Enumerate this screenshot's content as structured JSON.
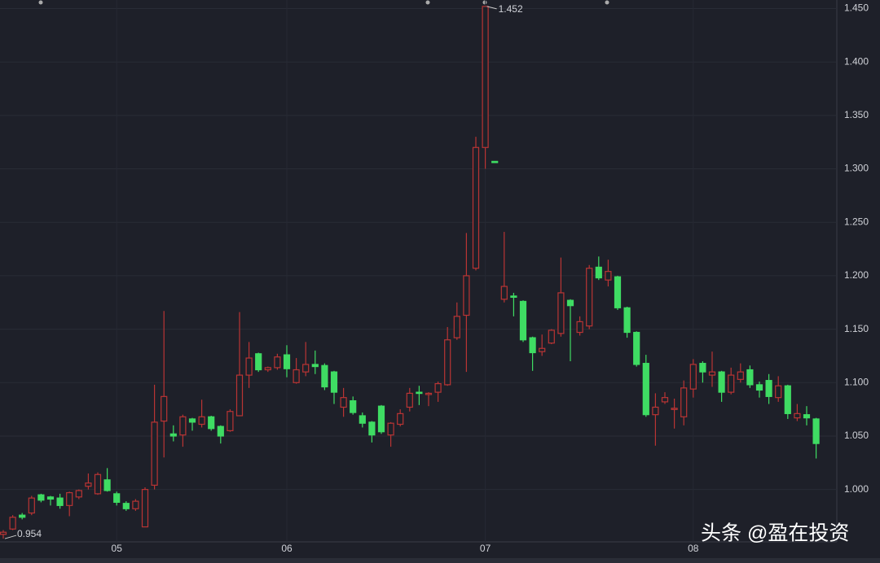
{
  "chart_data": {
    "type": "candlestick",
    "categories": [
      null,
      null,
      null,
      null,
      null,
      null,
      null,
      null,
      null,
      null,
      null,
      null,
      "05",
      null,
      null,
      null,
      null,
      null,
      null,
      null,
      null,
      null,
      null,
      null,
      null,
      null,
      null,
      null,
      null,
      null,
      "06",
      null,
      null,
      null,
      null,
      null,
      null,
      null,
      null,
      null,
      null,
      null,
      null,
      null,
      null,
      null,
      null,
      null,
      null,
      null,
      null,
      "07",
      null,
      null,
      null,
      null,
      null,
      null,
      null,
      null,
      null,
      null,
      null,
      null,
      null,
      null,
      null,
      null,
      null,
      null,
      null,
      null,
      null,
      "08",
      null,
      null,
      null,
      null,
      null,
      null,
      null,
      null,
      null,
      null,
      null,
      null,
      null
    ],
    "open": [
      0.958,
      0.963,
      0.976,
      0.978,
      0.995,
      0.993,
      0.992,
      0.985,
      0.993,
      1.003,
      0.996,
      1.009,
      0.996,
      0.987,
      0.982,
      0.965,
      1.004,
      1.064,
      1.052,
      1.051,
      1.066,
      1.061,
      1.068,
      1.059,
      1.055,
      1.069,
      1.107,
      1.127,
      1.112,
      1.114,
      1.126,
      1.1,
      1.11,
      1.117,
      1.116,
      1.11,
      1.077,
      1.083,
      1.069,
      1.063,
      1.078,
      1.051,
      1.061,
      1.077,
      1.091,
      1.089,
      1.091,
      1.098,
      1.142,
      1.163,
      1.207,
      1.32,
      1.307,
      1.178,
      1.181,
      1.176,
      1.142,
      1.129,
      1.137,
      1.146,
      1.177,
      1.147,
      1.153,
      1.208,
      1.196,
      1.199,
      1.17,
      1.147,
      1.118,
      1.07,
      1.082,
      1.075,
      1.068,
      1.094,
      1.118,
      1.107,
      1.11,
      1.091,
      1.103,
      1.112,
      1.098,
      1.102,
      1.086,
      1.097,
      1.067,
      1.07,
      1.066
    ],
    "high": [
      0.962,
      0.976,
      0.978,
      0.994,
      0.996,
      0.994,
      0.996,
      0.998,
      1.0,
      1.015,
      1.016,
      1.02,
      0.998,
      0.989,
      0.991,
      1.002,
      1.098,
      1.167,
      1.06,
      1.07,
      1.067,
      1.084,
      1.069,
      1.06,
      1.075,
      1.166,
      1.138,
      1.128,
      1.115,
      1.127,
      1.135,
      1.123,
      1.138,
      1.13,
      1.118,
      1.111,
      1.095,
      1.087,
      1.072,
      1.064,
      1.079,
      1.063,
      1.075,
      1.095,
      1.097,
      1.091,
      1.101,
      1.152,
      1.175,
      1.24,
      1.33,
      1.452,
      1.307,
      1.241,
      1.184,
      1.177,
      1.143,
      1.145,
      1.15,
      1.217,
      1.178,
      1.162,
      1.21,
      1.218,
      1.215,
      1.2,
      1.171,
      1.148,
      1.126,
      1.09,
      1.091,
      1.085,
      1.102,
      1.122,
      1.12,
      1.129,
      1.111,
      1.114,
      1.118,
      1.116,
      1.101,
      1.108,
      1.106,
      1.098,
      1.08,
      1.078,
      1.067
    ],
    "low": [
      0.954,
      0.962,
      0.972,
      0.976,
      0.988,
      0.985,
      0.982,
      0.975,
      0.991,
      1.0,
      0.995,
      0.998,
      0.985,
      0.98,
      0.98,
      0.965,
      1.0,
      1.03,
      1.045,
      1.04,
      1.055,
      1.058,
      1.055,
      1.043,
      1.054,
      1.069,
      1.095,
      1.11,
      1.11,
      1.112,
      1.105,
      1.099,
      1.106,
      1.108,
      1.093,
      1.08,
      1.068,
      1.07,
      1.058,
      1.044,
      1.052,
      1.04,
      1.059,
      1.073,
      1.079,
      1.078,
      1.082,
      1.097,
      1.14,
      1.11,
      1.205,
      1.3,
      1.306,
      1.175,
      1.162,
      1.138,
      1.111,
      1.125,
      1.136,
      1.143,
      1.12,
      1.144,
      1.15,
      1.196,
      1.19,
      1.168,
      1.142,
      1.115,
      1.068,
      1.041,
      1.08,
      1.057,
      1.06,
      1.086,
      1.1,
      1.096,
      1.082,
      1.089,
      1.1,
      1.095,
      1.086,
      1.08,
      1.082,
      1.066,
      1.064,
      1.06,
      1.029
    ],
    "close": [
      0.96,
      0.974,
      0.974,
      0.992,
      0.99,
      0.991,
      0.985,
      0.997,
      0.999,
      1.006,
      1.014,
      0.999,
      0.988,
      0.982,
      0.989,
      1.0,
      1.063,
      1.087,
      1.05,
      1.068,
      1.063,
      1.068,
      1.057,
      1.05,
      1.073,
      1.107,
      1.123,
      1.112,
      1.114,
      1.124,
      1.113,
      1.112,
      1.117,
      1.115,
      1.096,
      1.091,
      1.086,
      1.072,
      1.062,
      1.051,
      1.054,
      1.062,
      1.071,
      1.09,
      1.09,
      1.09,
      1.099,
      1.14,
      1.162,
      1.2,
      1.32,
      1.452,
      1.306,
      1.19,
      1.18,
      1.14,
      1.128,
      1.132,
      1.149,
      1.184,
      1.172,
      1.157,
      1.207,
      1.198,
      1.204,
      1.17,
      1.147,
      1.117,
      1.07,
      1.077,
      1.086,
      1.076,
      1.095,
      1.117,
      1.11,
      1.11,
      1.091,
      1.107,
      1.11,
      1.098,
      1.093,
      1.087,
      1.097,
      1.071,
      1.071,
      1.067,
      1.043
    ],
    "up_color": "#b93434",
    "down_color": "#3fdc63",
    "ylim": [
      0.951,
      1.458
    ],
    "yticks": [
      {
        "value": 1.0,
        "label": "1.000"
      },
      {
        "value": 1.05,
        "label": "1.050"
      },
      {
        "value": 1.1,
        "label": "1.100"
      },
      {
        "value": 1.15,
        "label": "1.150"
      },
      {
        "value": 1.2,
        "label": "1.200"
      },
      {
        "value": 1.25,
        "label": "1.250"
      },
      {
        "value": 1.3,
        "label": "1.300"
      },
      {
        "value": 1.35,
        "label": "1.350"
      },
      {
        "value": 1.4,
        "label": "1.400"
      },
      {
        "value": 1.45,
        "label": "1.450"
      }
    ],
    "grid": true,
    "max_label": "1.452",
    "min_label": "0.954",
    "watermark": "头条 @盈在投资"
  }
}
